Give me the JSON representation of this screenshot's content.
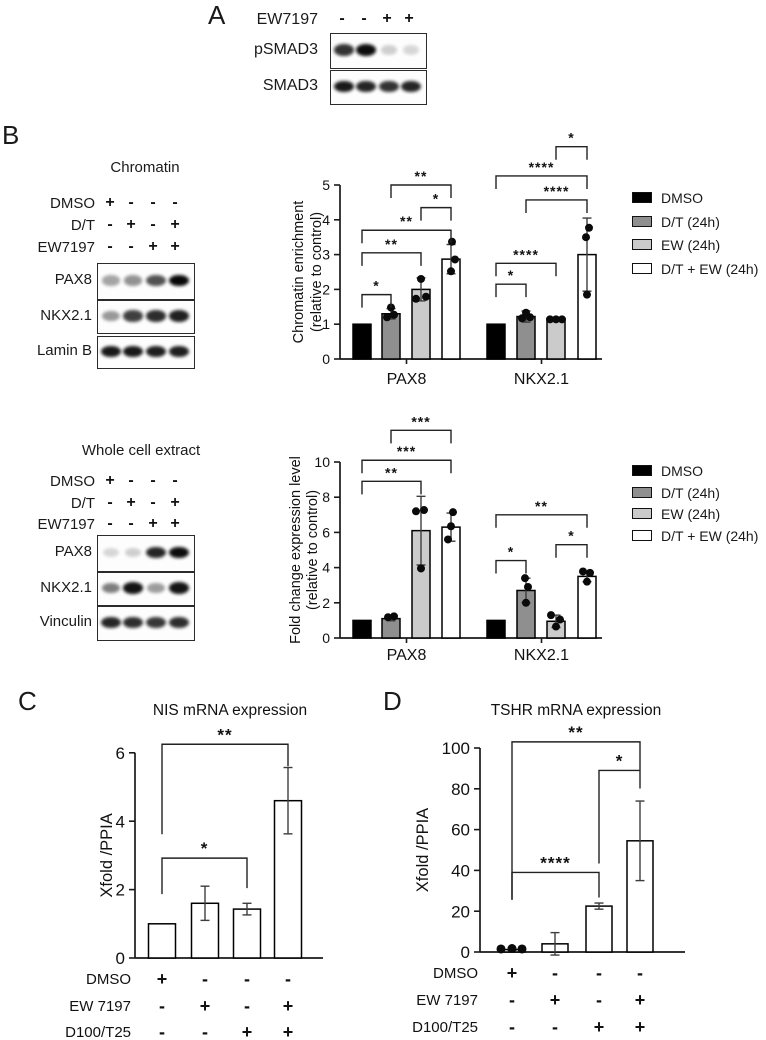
{
  "figure": {
    "panelA": {
      "label": "A",
      "treatment_label": "EW7197",
      "signs": [
        "-",
        "-",
        "+",
        "+"
      ],
      "blots": [
        {
          "label": "pSMAD3",
          "bands": [
            0.8,
            0.95,
            0.18,
            0.15
          ]
        },
        {
          "label": "SMAD3",
          "bands": [
            0.9,
            0.85,
            0.8,
            0.85
          ]
        }
      ]
    },
    "panelB": {
      "label": "B",
      "chromatin": {
        "title": "Chromatin",
        "treatments": [
          {
            "label": "DMSO",
            "signs": [
              "+",
              "-",
              "-",
              "-"
            ]
          },
          {
            "label": "D/T",
            "signs": [
              "-",
              "+",
              "-",
              "+"
            ]
          },
          {
            "label": "EW7197",
            "signs": [
              "-",
              "-",
              "+",
              "+"
            ]
          }
        ],
        "blots": [
          {
            "label": "PAX8",
            "bands": [
              0.35,
              0.42,
              0.68,
              0.97
            ]
          },
          {
            "label": "NKX2.1",
            "bands": [
              0.4,
              0.75,
              0.82,
              0.87
            ]
          },
          {
            "label": "Lamin B",
            "bands": [
              0.9,
              0.9,
              0.88,
              0.88
            ]
          }
        ]
      },
      "wce": {
        "title": "Whole cell extract",
        "treatments": [
          {
            "label": "DMSO",
            "signs": [
              "+",
              "-",
              "-",
              "-"
            ]
          },
          {
            "label": "D/T",
            "signs": [
              "-",
              "+",
              "-",
              "+"
            ]
          },
          {
            "label": "EW7197",
            "signs": [
              "-",
              "-",
              "+",
              "+"
            ]
          }
        ],
        "blots": [
          {
            "label": "PAX8",
            "bands": [
              0.15,
              0.18,
              0.85,
              0.95
            ]
          },
          {
            "label": "NKX2.1",
            "bands": [
              0.5,
              0.92,
              0.38,
              0.92
            ]
          },
          {
            "label": "Vinculin",
            "bands": [
              0.85,
              0.82,
              0.78,
              0.82
            ]
          }
        ]
      }
    },
    "panelC": {
      "label": "C"
    },
    "panelD": {
      "label": "D"
    }
  },
  "legend": {
    "items": [
      {
        "label": "DMSO",
        "color": "#000000"
      },
      {
        "label": "D/T (24h)",
        "color": "#8f8f8f"
      },
      {
        "label": "EW (24h)",
        "color": "#cbcbcb"
      },
      {
        "label": "D/T + EW (24h)",
        "color": "#ffffff"
      }
    ]
  },
  "chart_data": [
    {
      "id": "chromatin_enrichment",
      "type": "bar",
      "title": "",
      "ylabel": [
        "Chromatin enrichment",
        "(relative to control)"
      ],
      "categories": [
        "PAX8",
        "NKX2.1"
      ],
      "ylim": [
        0,
        5
      ],
      "yticks": [
        0,
        1,
        2,
        3,
        4,
        5
      ],
      "legend_position": "right",
      "series": [
        {
          "name": "DMSO",
          "color": "#000000",
          "values": [
            1.0,
            1.0
          ],
          "errors": [
            0,
            0
          ],
          "dots": [
            [],
            []
          ]
        },
        {
          "name": "D/T (24h)",
          "color": "#8f8f8f",
          "values": [
            1.3,
            1.22
          ],
          "errors": [
            0.15,
            0.16
          ],
          "dots": [
            [
              [
                -4,
                1.2
              ],
              [
                3,
                1.27
              ],
              [
                0,
                1.48
              ]
            ],
            [
              [
                -4,
                1.17
              ],
              [
                4,
                1.2
              ],
              [
                0,
                1.33
              ]
            ]
          ]
        },
        {
          "name": "EW (24h)",
          "color": "#cbcbcb",
          "values": [
            2.0,
            1.12
          ],
          "errors": [
            0.33,
            0.04
          ],
          "dots": [
            [
              [
                -5,
                1.73
              ],
              [
                5,
                1.79
              ],
              [
                0,
                2.3
              ]
            ],
            [
              [
                -6,
                1.14
              ],
              [
                0,
                1.14
              ],
              [
                6,
                1.14
              ]
            ]
          ]
        },
        {
          "name": "D/T + EW (24h)",
          "color": "#ffffff",
          "values": [
            2.87,
            3.0
          ],
          "errors": [
            0.42,
            1.05
          ],
          "dots": [
            [
              [
                0,
                2.52
              ],
              [
                4,
                2.86
              ],
              [
                1,
                3.37
              ]
            ],
            [
              [
                0,
                1.85
              ],
              [
                -1,
                3.5
              ],
              [
                2,
                3.77
              ]
            ]
          ]
        }
      ],
      "brackets": [
        {
          "b1": 0,
          "b2": 1,
          "y": 1.85,
          "label": "*"
        },
        {
          "b1": 0,
          "b2": 2,
          "y": 3.05,
          "label": "**"
        },
        {
          "b1": 0,
          "b2": 3,
          "y": 3.7,
          "label": "**"
        },
        {
          "b1": 2,
          "b2": 3,
          "y": 4.35,
          "label": "*"
        },
        {
          "b1": 1,
          "b2": 3,
          "y": 5.0,
          "label": "**"
        },
        {
          "b1": 4,
          "b2": 5,
          "y": 2.15,
          "label": "*"
        },
        {
          "b1": 4,
          "b2": 6,
          "y": 2.75,
          "label": "****"
        },
        {
          "b1": 5,
          "b2": 7,
          "y": 4.57,
          "label": "****"
        },
        {
          "b1": 4,
          "b2": 7,
          "y": 5.26,
          "label": "****"
        },
        {
          "b1": 6,
          "b2": 7,
          "y": 6.1,
          "label": "*"
        }
      ]
    },
    {
      "id": "fold_change_expression",
      "type": "bar",
      "title": "",
      "ylabel": [
        "Fold change expression level",
        "(relative to control)"
      ],
      "categories": [
        "PAX8",
        "NKX2.1"
      ],
      "ylim": [
        0,
        10
      ],
      "yticks": [
        0,
        2,
        4,
        6,
        8,
        10
      ],
      "legend_position": "right",
      "series": [
        {
          "name": "DMSO",
          "color": "#000000",
          "values": [
            1.0,
            1.0
          ],
          "errors": [
            0,
            0
          ],
          "dots": [
            [],
            []
          ]
        },
        {
          "name": "D/T (24h)",
          "color": "#8f8f8f",
          "values": [
            1.1,
            2.7
          ],
          "errors": [
            0.12,
            0.7
          ],
          "dots": [
            [
              [
                -3,
                1.18
              ],
              [
                3,
                1.23
              ]
            ],
            [
              [
                0,
                2.0
              ],
              [
                2,
                2.9
              ],
              [
                -1,
                3.4
              ]
            ]
          ]
        },
        {
          "name": "EW (24h)",
          "color": "#cbcbcb",
          "values": [
            6.1,
            0.95
          ],
          "errors": [
            1.95,
            0.35
          ],
          "dots": [
            [
              [
                -5,
                7.2
              ],
              [
                3,
                7.27
              ],
              [
                0,
                3.95
              ]
            ],
            [
              [
                -5,
                1.3
              ],
              [
                4,
                1.05
              ],
              [
                0,
                0.65
              ]
            ]
          ]
        },
        {
          "name": "D/T + EW (24h)",
          "color": "#ffffff",
          "values": [
            6.3,
            3.5
          ],
          "errors": [
            0.8,
            0.3
          ],
          "dots": [
            [
              [
                -3,
                5.6
              ],
              [
                0,
                6.35
              ],
              [
                2,
                7.15
              ]
            ],
            [
              [
                -4,
                3.78
              ],
              [
                3,
                3.7
              ],
              [
                0,
                3.2
              ]
            ]
          ]
        }
      ],
      "brackets": [
        {
          "b1": 0,
          "b2": 2,
          "y": 8.9,
          "label": "**"
        },
        {
          "b1": 0,
          "b2": 3,
          "y": 10.1,
          "label": "***"
        },
        {
          "b1": 1,
          "b2": 3,
          "y": 11.8,
          "label": "***"
        },
        {
          "b1": 4,
          "b2": 5,
          "y": 4.4,
          "label": "*"
        },
        {
          "b1": 6,
          "b2": 7,
          "y": 5.3,
          "label": "*"
        },
        {
          "b1": 4,
          "b2": 7,
          "y": 7.0,
          "label": "**"
        }
      ]
    },
    {
      "id": "nis_mrna",
      "type": "bar",
      "title": "NIS mRNA expression",
      "ylabel": [
        "Xfold /PPIA"
      ],
      "categories": [],
      "ylim": [
        0,
        6
      ],
      "yticks": [
        0,
        2,
        4,
        6
      ],
      "series": [
        {
          "name": "",
          "color": "#ffffff",
          "values": [
            1.0,
            1.6,
            1.43,
            4.6
          ],
          "errors": [
            0,
            0.5,
            0.17,
            0.97
          ],
          "dots": [
            [],
            [],
            [],
            []
          ]
        }
      ],
      "treatments": [
        {
          "label": "DMSO",
          "signs": [
            "+",
            "-",
            "-",
            "-"
          ]
        },
        {
          "label": "EW 7197",
          "signs": [
            "-",
            "+",
            "-",
            "+"
          ]
        },
        {
          "label": "D100/T25",
          "signs": [
            "-",
            "-",
            "+",
            "+"
          ]
        }
      ],
      "brackets": [
        {
          "b1": 0,
          "b2": 2,
          "y": 2.92,
          "label": "*",
          "d1": 36,
          "d2": 30
        },
        {
          "b1": 0,
          "b2": 3,
          "y": 6.25,
          "label": "**",
          "d1": 90,
          "d2": 22
        }
      ]
    },
    {
      "id": "tshr_mrna",
      "type": "bar",
      "title": "TSHR mRNA expression",
      "ylabel": [
        "Xfold /PPIA"
      ],
      "categories": [],
      "ylim": [
        0,
        100
      ],
      "yticks": [
        0,
        20,
        40,
        60,
        80,
        100
      ],
      "series": [
        {
          "name": "",
          "color": "#ffffff",
          "values": [
            1.2,
            4.0,
            22.5,
            54.5
          ],
          "errors": [
            0.4,
            5.5,
            1.5,
            19.5
          ],
          "dots": [
            [
              [
                -11,
                1.5
              ],
              [
                0,
                1.7
              ],
              [
                10,
                1.5
              ]
            ],
            [],
            [],
            []
          ]
        }
      ],
      "treatments": [
        {
          "label": "DMSO",
          "signs": [
            "+",
            "-",
            "-",
            "-"
          ]
        },
        {
          "label": "EW 7197",
          "signs": [
            "-",
            "+",
            "-",
            "+"
          ]
        },
        {
          "label": "D100/T25",
          "signs": [
            "-",
            "-",
            "+",
            "+"
          ]
        }
      ],
      "brackets": [
        {
          "b1": 0,
          "b2": 2,
          "y": 39,
          "label": "****",
          "d1": 27,
          "d2": 25
        },
        {
          "b1": 2,
          "b2": 3,
          "y": 89,
          "label": "*",
          "d1": 93,
          "d2": 18
        },
        {
          "b1": 0,
          "b2": 3,
          "y": 103,
          "label": "**",
          "d1": 158,
          "d2": 28
        }
      ]
    }
  ]
}
